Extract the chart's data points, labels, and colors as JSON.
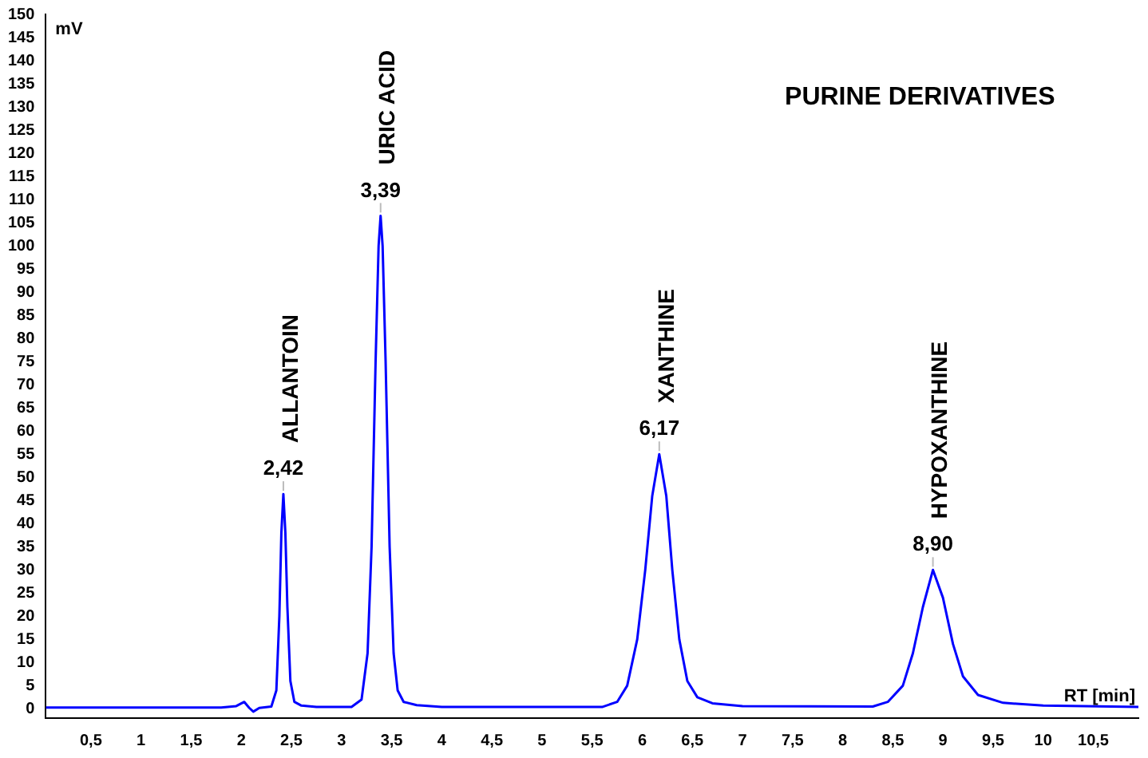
{
  "chart_data": {
    "type": "line",
    "title": "PURINE DERIVATIVES",
    "xlabel": "RT [min]",
    "ylabel": "mV",
    "x": [
      0.05,
      1.8,
      1.95,
      2.03,
      2.08,
      2.12,
      2.18,
      2.3,
      2.35,
      2.38,
      2.4,
      2.42,
      2.44,
      2.46,
      2.49,
      2.53,
      2.6,
      2.75,
      3.1,
      3.2,
      3.26,
      3.3,
      3.34,
      3.37,
      3.39,
      3.41,
      3.44,
      3.48,
      3.52,
      3.56,
      3.62,
      3.75,
      4.0,
      5.6,
      5.75,
      5.85,
      5.95,
      6.03,
      6.1,
      6.17,
      6.24,
      6.3,
      6.37,
      6.45,
      6.55,
      6.7,
      7.0,
      8.3,
      8.45,
      8.6,
      8.7,
      8.8,
      8.9,
      9.0,
      9.1,
      9.2,
      9.35,
      9.6,
      10.0,
      10.95
    ],
    "series": [
      {
        "color": "#0000ff",
        "values": [
          0.3,
          0.3,
          0.6,
          1.5,
          0.2,
          -0.6,
          0.2,
          0.5,
          4,
          20,
          38,
          46.4,
          38,
          22,
          6,
          1.5,
          0.7,
          0.4,
          0.4,
          2,
          12,
          35,
          75,
          100,
          106.5,
          100,
          75,
          35,
          12,
          4,
          1.5,
          0.8,
          0.4,
          0.4,
          1.5,
          5,
          15,
          30,
          46,
          55,
          46,
          30,
          15,
          6,
          2.5,
          1.2,
          0.6,
          0.5,
          1.5,
          5,
          12,
          22,
          30,
          24,
          14,
          7,
          3,
          1.3,
          0.7,
          0.4
        ]
      }
    ],
    "xlim": [
      0.05,
      10.95
    ],
    "xticks": [
      {
        "value": 0.5,
        "label": "0,5"
      },
      1,
      {
        "value": 1.5,
        "label": "1,5"
      },
      2,
      {
        "value": 2.5,
        "label": "2,5"
      },
      3,
      {
        "value": 3.5,
        "label": "3,5"
      },
      4,
      {
        "value": 4.5,
        "label": "4,5"
      },
      5,
      {
        "value": 5.5,
        "label": "5,5"
      },
      6,
      {
        "value": 6.5,
        "label": "6,5"
      },
      7,
      {
        "value": 7.5,
        "label": "7,5"
      },
      8,
      {
        "value": 8.5,
        "label": "8,5"
      },
      9,
      {
        "value": 9.5,
        "label": "9,5"
      },
      10,
      {
        "value": 10.5,
        "label": "10,5"
      }
    ],
    "ylim": [
      -2,
      150
    ],
    "yticks": [
      0,
      5,
      10,
      15,
      20,
      25,
      30,
      35,
      40,
      45,
      50,
      55,
      60,
      65,
      70,
      75,
      80,
      85,
      90,
      95,
      100,
      105,
      110,
      115,
      120,
      125,
      130,
      135,
      140,
      145,
      150
    ],
    "annotations": [
      {
        "text": "2,42",
        "x": 2.42,
        "y": 46.4
      },
      {
        "text": "ALLANTOIN",
        "x": 2.42,
        "y": 46.4
      },
      {
        "text": "3,39",
        "x": 3.39,
        "y": 106.5
      },
      {
        "text": "URIC ACID",
        "x": 3.39,
        "y": 106.5
      },
      {
        "text": "6,17",
        "x": 6.17,
        "y": 55
      },
      {
        "text": "XANTHINE",
        "x": 6.17,
        "y": 55
      },
      {
        "text": "8,90",
        "x": 8.9,
        "y": 30
      },
      {
        "text": "HYPOXANTHINE",
        "x": 8.9,
        "y": 30
      }
    ],
    "grid": false,
    "legend": false,
    "marker": "none",
    "line_style": "solid"
  }
}
